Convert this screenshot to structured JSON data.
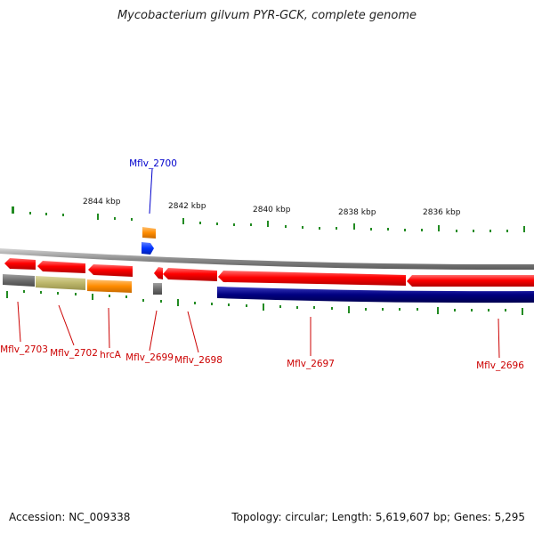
{
  "title": "Mycobacterium gilvum PYR-GCK, complete genome",
  "accession": "Accession: NC_009338",
  "summary": "Topology: circular; Length: 5,619,607 bp; Genes: 5,295",
  "scale_labels": [
    "2844 kbp",
    "2842 kbp",
    "2840 kbp",
    "2838 kbp",
    "2836 kbp"
  ],
  "gene_labels": [
    "Mflv_2700",
    "Mflv_2703",
    "Mflv_2702",
    "hrcA",
    "Mflv_2699",
    "Mflv_2698",
    "Mflv_2697",
    "Mflv_2696"
  ],
  "colors": {
    "backbone": "#8c8c8c",
    "cds_red": "#ff0000",
    "label_red": "#cc0000",
    "label_blue": "#0000cc",
    "tick": "#228b22",
    "navy": "#000080",
    "grey_feature": "#6e6e6e",
    "khaki": "#bdb76b",
    "orange": "#ff8c00",
    "blue_feature": "#0033ff"
  }
}
